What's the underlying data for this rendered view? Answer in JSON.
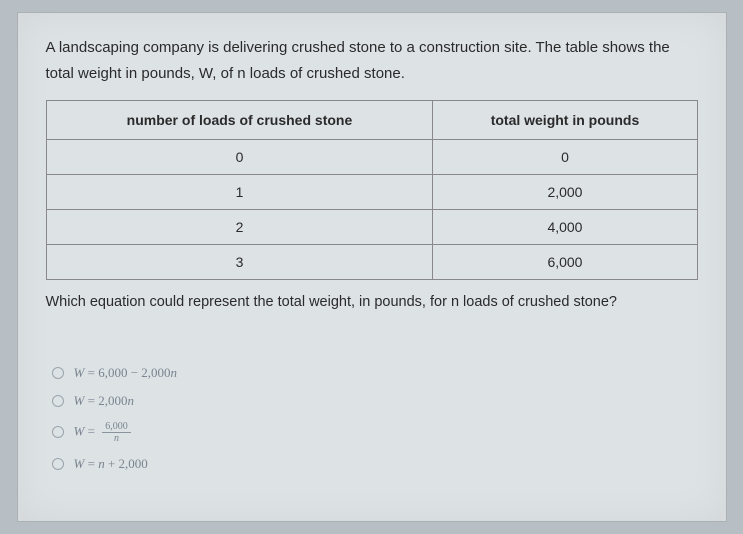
{
  "intro": "A landscaping company is delivering crushed stone to a construction site. The table shows the total weight in pounds, W, of n loads of crushed stone.",
  "table": {
    "header_left": "number of loads of crushed stone",
    "header_right": "total weight in pounds",
    "rows": [
      {
        "loads": "0",
        "weight": "0"
      },
      {
        "loads": "1",
        "weight": "2,000"
      },
      {
        "loads": "2",
        "weight": "4,000"
      },
      {
        "loads": "3",
        "weight": "6,000"
      }
    ],
    "border_color": "#888888",
    "cell_bg": "#dde2e5"
  },
  "after": "Which equation could represent the total weight, in pounds, for n loads of crushed stone?",
  "options": {
    "a": {
      "lhs": "W",
      "eq": "=",
      "rhs_a": "6,000",
      "op": "−",
      "rhs_b": "2,000",
      "var": "n"
    },
    "b": {
      "lhs": "W",
      "eq": "=",
      "rhs_a": "2,000",
      "var": "n"
    },
    "c": {
      "lhs": "W",
      "eq": "=",
      "frac_top": "6,000",
      "frac_bot": "n"
    },
    "d": {
      "lhs": "W",
      "eq": "=",
      "var": "n",
      "op": "+",
      "rhs_b": "2,000"
    }
  },
  "style": {
    "page_bg": "#b8bfc4",
    "sheet_bg": "#dde2e5",
    "text_color": "#2a2a2a",
    "option_color": "#7a8590",
    "intro_fontsize": 15,
    "option_fontsize": 13
  }
}
